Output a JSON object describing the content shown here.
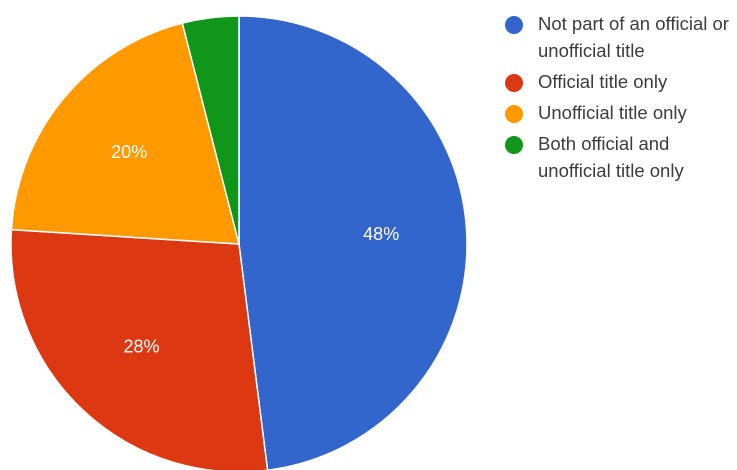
{
  "chart_data": {
    "type": "pie",
    "slices": [
      {
        "label": "Not part of an official or unofficial title",
        "value": 48,
        "display": "48%",
        "color": "#3366cc"
      },
      {
        "label": "Official title only",
        "value": 28,
        "display": "28%",
        "color": "#dc3912"
      },
      {
        "label": "Unofficial title only",
        "value": 20,
        "display": "20%",
        "color": "#ff9900"
      },
      {
        "label": "Both official and unofficial title only",
        "value": 4,
        "display": "",
        "color": "#109618"
      }
    ],
    "start_angle_deg": 0,
    "direction": "clockwise",
    "legend_position": "right"
  }
}
